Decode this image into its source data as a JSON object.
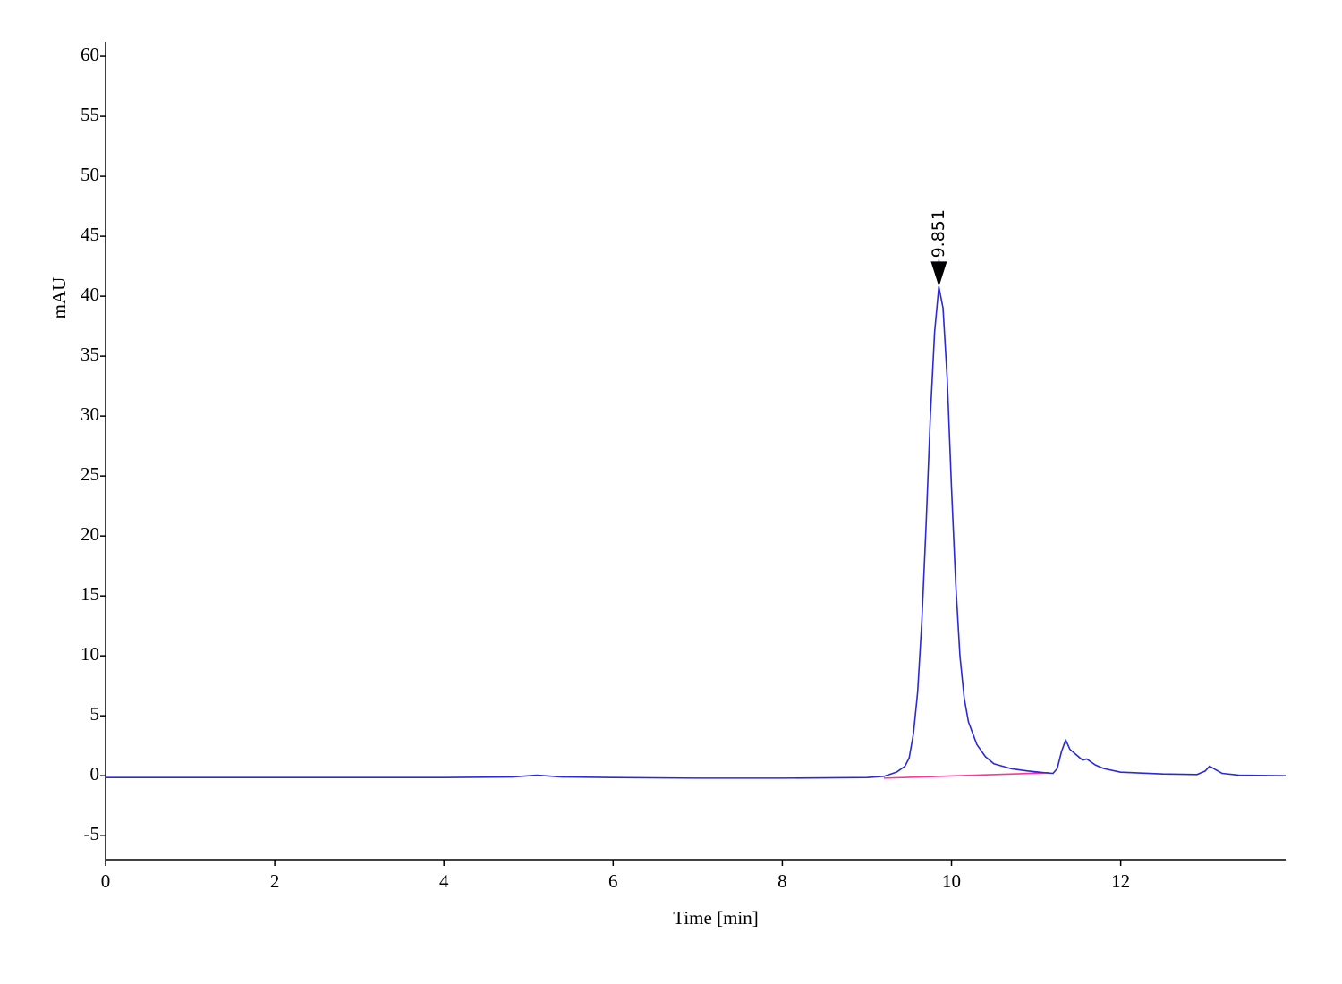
{
  "chart_data": {
    "type": "line",
    "xlabel": "Time [min]",
    "ylabel": "mAU",
    "xlim": [
      0,
      13.95
    ],
    "ylim": [
      -7,
      61.2
    ],
    "xticks": [
      0,
      2,
      4,
      6,
      8,
      10,
      12
    ],
    "yticks": [
      -5,
      0,
      5,
      10,
      15,
      20,
      25,
      30,
      35,
      40,
      45,
      50,
      55,
      60
    ],
    "grid": false,
    "series": [
      {
        "color": "#2a2ad8",
        "x": [
          0,
          1,
          2,
          3,
          4,
          4.8,
          5.1,
          5.4,
          6,
          7,
          8,
          9,
          9.2,
          9.35,
          9.45,
          9.5,
          9.55,
          9.6,
          9.65,
          9.7,
          9.75,
          9.8,
          9.85,
          9.9,
          9.95,
          10.0,
          10.05,
          10.1,
          10.15,
          10.2,
          10.3,
          10.4,
          10.5,
          10.7,
          10.9,
          11.1,
          11.2,
          11.25,
          11.3,
          11.35,
          11.4,
          11.5,
          11.55,
          11.6,
          11.7,
          11.8,
          12.0,
          12.5,
          12.9,
          13.0,
          13.05,
          13.1,
          13.2,
          13.4,
          13.95
        ],
        "values": [
          -0.15,
          -0.15,
          -0.15,
          -0.15,
          -0.15,
          -0.1,
          0.05,
          -0.1,
          -0.15,
          -0.2,
          -0.2,
          -0.15,
          -0.05,
          0.3,
          0.8,
          1.5,
          3.5,
          7,
          13,
          21,
          30,
          37,
          40.8,
          39,
          33,
          24,
          16,
          10,
          6.5,
          4.5,
          2.6,
          1.6,
          1.0,
          0.6,
          0.4,
          0.25,
          0.2,
          0.6,
          2.0,
          3.0,
          2.2,
          1.6,
          1.3,
          1.4,
          0.9,
          0.6,
          0.3,
          0.15,
          0.1,
          0.4,
          0.8,
          0.6,
          0.2,
          0.05,
          0.0
        ]
      },
      {
        "color": "#ff3399",
        "x": [
          9.2,
          11.15
        ],
        "values": [
          -0.2,
          0.25
        ]
      }
    ],
    "annotations": [
      {
        "x": 9.851,
        "y": 40.8
      }
    ]
  }
}
